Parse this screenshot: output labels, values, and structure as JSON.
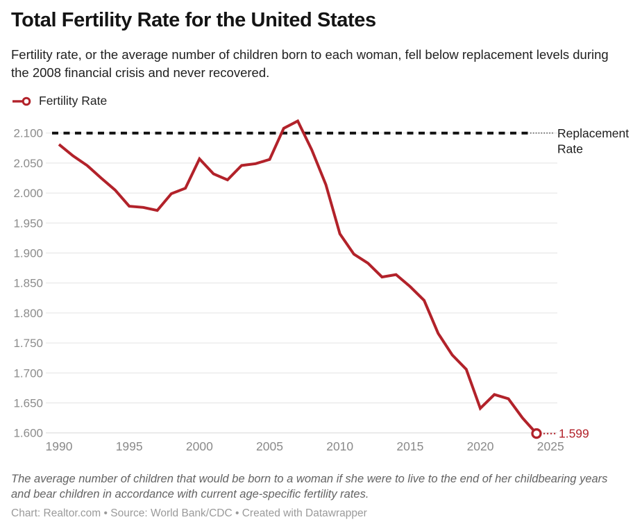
{
  "header": {
    "title": "Total Fertility Rate for the United States",
    "subtitle": "Fertility rate, or the average number of children born to each woman, fell below replacement levels during the 2008 financial crisis and never recovered."
  },
  "legend": {
    "label": "Fertility Rate"
  },
  "footer": {
    "note": "The average number of children that would be born to a woman if she were to live to the end of her childbearing years and bear children in accordance with current age-specific fertility rates.",
    "attribution": "Chart: Realtor.com • Source: World Bank/CDC • Created with Datawrapper"
  },
  "colors": {
    "series_red": "#b2222a",
    "replacement_black": "#111111",
    "grid": "#e3e3e3",
    "grid_bottom": "#d7d7d7",
    "tick_text": "#8c8c8c"
  },
  "chart_data": {
    "type": "line",
    "title": "Total Fertility Rate for the United States",
    "series_name": "Fertility Rate",
    "x": [
      1990,
      1991,
      1992,
      1993,
      1994,
      1995,
      1996,
      1997,
      1998,
      1999,
      2000,
      2001,
      2002,
      2003,
      2004,
      2005,
      2006,
      2007,
      2008,
      2009,
      2010,
      2011,
      2012,
      2013,
      2014,
      2015,
      2016,
      2017,
      2018,
      2019,
      2020,
      2021,
      2022,
      2023,
      2024
    ],
    "values": [
      2.081,
      2.062,
      2.046,
      2.025,
      2.005,
      1.978,
      1.976,
      1.971,
      1.999,
      2.008,
      2.057,
      2.032,
      2.022,
      2.046,
      2.049,
      2.056,
      2.108,
      2.12,
      2.072,
      2.014,
      1.932,
      1.898,
      1.883,
      1.86,
      1.864,
      1.844,
      1.821,
      1.766,
      1.73,
      1.706,
      1.641,
      1.664,
      1.657,
      1.625,
      1.599
    ],
    "ylim": [
      1.6,
      2.1
    ],
    "yticks": [
      "2.100",
      "2.050",
      "2.000",
      "1.950",
      "1.900",
      "1.850",
      "1.800",
      "1.750",
      "1.700",
      "1.650",
      "1.600"
    ],
    "ytick_values": [
      2.1,
      2.05,
      2.0,
      1.95,
      1.9,
      1.85,
      1.8,
      1.75,
      1.7,
      1.65,
      1.6
    ],
    "xticks": [
      "1990",
      "1995",
      "2000",
      "2005",
      "2010",
      "2015",
      "2020",
      "2025"
    ],
    "xtick_values": [
      1990,
      1995,
      2000,
      2005,
      2010,
      2015,
      2020,
      2025
    ],
    "grid": "horizontal-only",
    "legend_position": "top-left",
    "replacement_rate": {
      "value": 2.1,
      "label_lines": [
        "Replacement",
        "Rate"
      ]
    },
    "end_annotation": {
      "year": 2024,
      "label": "1.599"
    }
  }
}
